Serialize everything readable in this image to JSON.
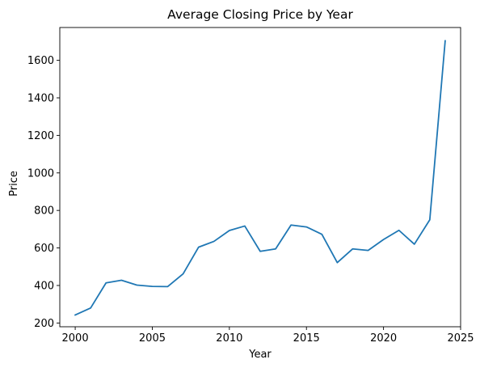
{
  "chart_data": {
    "type": "line",
    "title": "Average Closing Price by Year",
    "xlabel": "Year",
    "ylabel": "Price",
    "xlim": [
      1999,
      2025
    ],
    "ylim": [
      180,
      1775
    ],
    "x_ticks": [
      "2000",
      "2005",
      "2010",
      "2015",
      "2020",
      "2025"
    ],
    "y_ticks": [
      "200",
      "400",
      "600",
      "800",
      "1000",
      "1200",
      "1400",
      "1600"
    ],
    "grid": false,
    "line_color": "#1f77b4",
    "series": [
      {
        "x": [
          2000,
          2001,
          2002,
          2003,
          2004,
          2005,
          2006,
          2007,
          2008,
          2009,
          2010,
          2011,
          2012,
          2013,
          2014,
          2015,
          2016,
          2017,
          2018,
          2019,
          2020,
          2021,
          2022,
          2023,
          2024
        ],
        "values": [
          243,
          280,
          414,
          428,
          402,
          395,
          394,
          462,
          604,
          635,
          693,
          717,
          582,
          595,
          722,
          712,
          673,
          522,
          595,
          587,
          645,
          694,
          620,
          750,
          1704
        ]
      }
    ]
  }
}
